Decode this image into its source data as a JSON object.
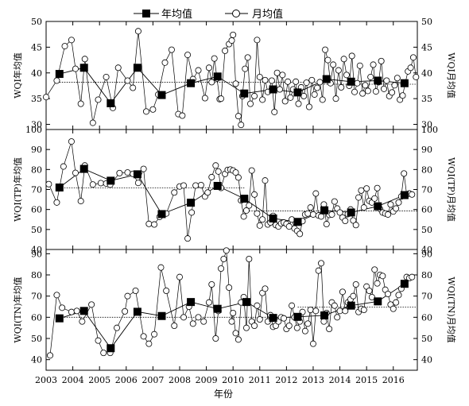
{
  "chart_data": {
    "type": "line",
    "legend": {
      "placement": "top-center",
      "annual_label": "年均值",
      "monthly_label": "月均值"
    },
    "xlabel": "年份",
    "xlim": [
      2003,
      2016.9
    ],
    "xticks": [
      2003,
      2004,
      2005,
      2006,
      2007,
      2008,
      2009,
      2010,
      2011,
      2012,
      2013,
      2014,
      2015,
      2016
    ],
    "panels": [
      {
        "ylabel_left": "WQI年均值",
        "ylabel_right": "WQI月均值",
        "ylim": [
          29,
          50
        ],
        "yticks": [
          30,
          35,
          40,
          45,
          50
        ],
        "reference_lines": [
          {
            "x": [
              2003.5,
              2013.4
            ],
            "y": 38.2
          },
          {
            "x": [
              2013.4,
              2016.9
            ],
            "y": 37.8
          }
        ],
        "annual": {
          "x": [
            2003.5,
            2004.42,
            2005.42,
            2006.42,
            2007.33,
            2008.42,
            2009.42,
            2010.42,
            2011.5,
            2012.42,
            2013.5,
            2014.42,
            2015.42,
            2016.42
          ],
          "y": [
            39.8,
            41.0,
            34.1,
            41.0,
            35.7,
            38.0,
            39.3,
            36.0,
            36.8,
            36.2,
            38.8,
            38.3,
            38.5,
            38.0
          ]
        },
        "monthly": {
          "x": [
            2003.0,
            2003.4,
            2003.7,
            2003.95,
            2004.1,
            2004.3,
            2004.45,
            2004.75,
            2004.95,
            2005.25,
            2005.5,
            2005.7,
            2006.05,
            2006.25,
            2006.45,
            2006.75,
            2007.0,
            2007.2,
            2007.45,
            2007.7,
            2007.95,
            2008.1,
            2008.3,
            2008.5,
            2008.7,
            2008.95,
            2009.1,
            2009.2,
            2009.3,
            2009.4,
            2009.5,
            2009.55,
            2009.7,
            2009.85,
            2009.95,
            2010.0,
            2010.1,
            2010.2,
            2010.3,
            2010.35,
            2010.45,
            2010.55,
            2010.65,
            2010.8,
            2010.9,
            2011.0,
            2011.1,
            2011.2,
            2011.3,
            2011.45,
            2011.55,
            2011.65,
            2011.75,
            2011.85,
            2011.95,
            2012.05,
            2012.15,
            2012.25,
            2012.35,
            2012.45,
            2012.55,
            2012.65,
            2012.75,
            2012.85,
            2012.95,
            2013.05,
            2013.15,
            2013.25,
            2013.35,
            2013.45,
            2013.55,
            2013.65,
            2013.75,
            2013.85,
            2013.95,
            2014.05,
            2014.15,
            2014.25,
            2014.35,
            2014.45,
            2014.55,
            2014.65,
            2014.75,
            2014.85,
            2014.95,
            2015.05,
            2015.15,
            2015.25,
            2015.35,
            2015.45,
            2015.55,
            2015.65,
            2015.75,
            2015.85,
            2015.95,
            2016.05,
            2016.15,
            2016.25,
            2016.35,
            2016.45,
            2016.55,
            2016.65,
            2016.75,
            2016.85
          ],
          "y": [
            35.3,
            38.5,
            45.2,
            46.4,
            40.8,
            34.0,
            42.7,
            30.3,
            34.8,
            39.2,
            33.2,
            41.0,
            38.5,
            37.1,
            48.1,
            32.5,
            32.9,
            35.8,
            42.0,
            44.5,
            32.0,
            31.7,
            43.5,
            38.8,
            40.5,
            35.1,
            41.0,
            38.2,
            42.8,
            38.9,
            34.9,
            35.0,
            44.3,
            45.6,
            46.3,
            47.4,
            37.9,
            31.6,
            29.9,
            35.5,
            40.8,
            43.0,
            34.0,
            35.5,
            46.4,
            39.2,
            34.8,
            38.6,
            36.3,
            38.5,
            32.4,
            40.0,
            36.8,
            39.6,
            34.5,
            38.3,
            35.2,
            36.8,
            38.3,
            34.0,
            37.2,
            35.5,
            38.1,
            33.4,
            38.6,
            35.8,
            37.1,
            38.2,
            34.8,
            44.5,
            42.5,
            38.0,
            41.6,
            35.0,
            40.5,
            37.2,
            42.7,
            39.6,
            37.5,
            43.3,
            36.3,
            38.0,
            41.4,
            36.0,
            37.6,
            36.5,
            39.2,
            41.6,
            36.4,
            38.2,
            42.3,
            36.9,
            38.5,
            35.5,
            36.2,
            37.6,
            39.0,
            34.8,
            35.6,
            38.1,
            40.3,
            41.0,
            43.0,
            39.2
          ]
        }
      },
      {
        "ylabel_left": "WQI(TP)年均值",
        "ylabel_right": "WQI(TP)月均值",
        "ylim": [
          40,
          100
        ],
        "yticks": [
          40,
          50,
          60,
          70,
          80,
          90,
          100
        ],
        "reference_lines": [
          {
            "x": [
              2003.5,
              2010.42
            ],
            "y": 70.8
          },
          {
            "x": [
              2010.42,
              2016.9
            ],
            "y": 59.3
          }
        ],
        "annual": {
          "x": [
            2003.5,
            2004.42,
            2005.42,
            2006.42,
            2007.33,
            2008.42,
            2009.42,
            2010.42,
            2011.5,
            2012.42,
            2013.42,
            2014.42,
            2015.42,
            2016.42
          ],
          "y": [
            71.0,
            80.3,
            74.4,
            77.6,
            57.7,
            63.4,
            71.8,
            65.4,
            55.5,
            53.8,
            59.6,
            58.5,
            61.6,
            67.2
          ]
        },
        "monthly": {
          "x": [
            2003.1,
            2003.4,
            2003.65,
            2003.95,
            2004.1,
            2004.3,
            2004.45,
            2004.75,
            2005.05,
            2005.25,
            2005.4,
            2005.75,
            2006.05,
            2006.25,
            2006.45,
            2006.65,
            2006.85,
            2007.05,
            2007.25,
            2007.5,
            2007.8,
            2008.0,
            2008.15,
            2008.3,
            2008.45,
            2008.6,
            2008.8,
            2008.95,
            2009.05,
            2009.2,
            2009.35,
            2009.45,
            2009.55,
            2009.7,
            2009.8,
            2009.9,
            2010.0,
            2010.1,
            2010.2,
            2010.3,
            2010.4,
            2010.5,
            2010.6,
            2010.7,
            2010.8,
            2010.9,
            2011.0,
            2011.1,
            2011.2,
            2011.3,
            2011.4,
            2011.5,
            2011.6,
            2011.7,
            2011.8,
            2011.9,
            2012.0,
            2012.1,
            2012.2,
            2012.3,
            2012.4,
            2012.5,
            2012.6,
            2012.7,
            2012.8,
            2012.9,
            2013.0,
            2013.1,
            2013.2,
            2013.3,
            2013.4,
            2013.5,
            2013.6,
            2013.7,
            2013.8,
            2013.9,
            2014.0,
            2014.1,
            2014.2,
            2014.3,
            2014.4,
            2014.5,
            2014.6,
            2014.7,
            2014.8,
            2014.9,
            2015.0,
            2015.1,
            2015.2,
            2015.3,
            2015.4,
            2015.5,
            2015.6,
            2015.7,
            2015.8,
            2015.9,
            2016.0,
            2016.1,
            2016.2,
            2016.3,
            2016.4,
            2016.5,
            2016.6,
            2016.7
          ],
          "y": [
            72.7,
            63.5,
            81.5,
            94.0,
            78.3,
            64.2,
            82.0,
            72.5,
            73.2,
            73.0,
            72.4,
            78.2,
            78.5,
            77.8,
            73.3,
            80.3,
            52.8,
            52.5,
            56.3,
            58.0,
            68.5,
            71.5,
            72.0,
            45.5,
            58.5,
            72.0,
            72.2,
            66.5,
            68.5,
            76.2,
            82.0,
            79.0,
            70.8,
            77.8,
            79.8,
            80.0,
            79.5,
            78.5,
            76.0,
            64.5,
            56.5,
            59.5,
            62.0,
            79.5,
            67.5,
            58.0,
            52.0,
            55.0,
            74.5,
            52.5,
            53.5,
            56.8,
            52.2,
            51.5,
            53.0,
            53.5,
            52.8,
            51.5,
            55.0,
            50.5,
            49.3,
            47.8,
            54.2,
            57.5,
            58.0,
            61.0,
            57.5,
            68.0,
            57.0,
            56.5,
            62.5,
            52.7,
            57.3,
            57.5,
            64.0,
            60.5,
            58.5,
            56.0,
            54.3,
            57.7,
            60.0,
            54.5,
            52.2,
            66.0,
            69.5,
            61.0,
            70.5,
            64.3,
            63.5,
            65.5,
            70.7,
            60.3,
            58.5,
            58.0,
            57.5,
            62.5,
            59.0,
            60.5,
            63.5,
            66.5,
            78.0,
            67.5,
            68.0,
            67.5
          ]
        }
      },
      {
        "ylabel_left": "WQI(TN)年均值",
        "ylabel_right": "WQI(TN)月均值",
        "ylim": [
          35,
          92
        ],
        "yticks": [
          40,
          50,
          60,
          70,
          80,
          90
        ],
        "reference_lines": [
          {
            "x": [
              2003.5,
              2012.42
            ],
            "y": 60.0
          },
          {
            "x": [
              2012.42,
              2016.9
            ],
            "y": 64.8
          }
        ],
        "annual": {
          "x": [
            2003.5,
            2004.42,
            2005.42,
            2006.42,
            2007.33,
            2008.42,
            2009.42,
            2010.5,
            2011.5,
            2012.42,
            2013.42,
            2014.42,
            2015.42,
            2016.42
          ],
          "y": [
            59.5,
            63.0,
            45.4,
            62.6,
            60.6,
            67.2,
            64.0,
            67.2,
            59.7,
            60.2,
            60.9,
            65.5,
            67.5,
            75.8
          ]
        },
        "monthly": {
          "x": [
            2003.15,
            2003.4,
            2003.6,
            2003.95,
            2004.15,
            2004.35,
            2004.7,
            2004.95,
            2005.15,
            2005.4,
            2005.65,
            2005.95,
            2006.05,
            2006.35,
            2006.65,
            2006.85,
            2007.05,
            2007.3,
            2007.5,
            2007.8,
            2008.0,
            2008.15,
            2008.35,
            2008.5,
            2008.7,
            2008.9,
            2009.1,
            2009.2,
            2009.35,
            2009.45,
            2009.55,
            2009.65,
            2009.75,
            2009.85,
            2009.95,
            2010.0,
            2010.1,
            2010.2,
            2010.3,
            2010.4,
            2010.5,
            2010.6,
            2010.7,
            2010.8,
            2010.9,
            2011.0,
            2011.1,
            2011.2,
            2011.3,
            2011.4,
            2011.5,
            2011.6,
            2011.7,
            2011.8,
            2011.9,
            2012.0,
            2012.1,
            2012.2,
            2012.3,
            2012.4,
            2012.5,
            2012.6,
            2012.7,
            2012.8,
            2012.9,
            2013.0,
            2013.1,
            2013.2,
            2013.3,
            2013.4,
            2013.5,
            2013.6,
            2013.7,
            2013.8,
            2013.9,
            2014.0,
            2014.1,
            2014.2,
            2014.3,
            2014.4,
            2014.5,
            2014.6,
            2014.7,
            2014.8,
            2014.9,
            2015.0,
            2015.1,
            2015.2,
            2015.3,
            2015.4,
            2015.5,
            2015.6,
            2015.7,
            2015.8,
            2015.9,
            2016.0,
            2016.1,
            2016.2,
            2016.3,
            2016.4,
            2016.5,
            2016.6,
            2016.7
          ],
          "y": [
            42.0,
            70.5,
            64.5,
            62.5,
            63.0,
            58.0,
            66.0,
            49.0,
            43.2,
            43.2,
            55.0,
            62.8,
            70.0,
            72.5,
            51.0,
            47.5,
            52.0,
            83.5,
            72.5,
            56.0,
            79.0,
            60.0,
            65.0,
            57.0,
            60.0,
            58.0,
            67.0,
            75.5,
            50.0,
            63.0,
            83.0,
            87.5,
            91.5,
            74.0,
            58.0,
            62.0,
            52.5,
            49.5,
            67.0,
            69.5,
            55.0,
            87.5,
            58.0,
            56.0,
            65.5,
            59.0,
            71.5,
            73.5,
            58.0,
            61.0,
            55.5,
            56.0,
            58.0,
            60.0,
            59.5,
            54.5,
            56.0,
            65.5,
            60.0,
            55.0,
            58.0,
            62.5,
            53.5,
            57.0,
            63.5,
            47.5,
            63.0,
            82.0,
            85.5,
            58.0,
            62.0,
            54.5,
            67.0,
            65.5,
            60.0,
            63.0,
            72.0,
            63.0,
            67.0,
            68.5,
            70.0,
            75.5,
            62.5,
            64.0,
            63.5,
            74.5,
            72.5,
            69.5,
            82.5,
            76.0,
            80.0,
            79.5,
            73.0,
            71.0,
            66.0,
            64.0,
            67.0,
            70.5,
            73.5,
            76.0,
            79.0,
            78.5,
            79.0
          ]
        }
      }
    ]
  }
}
